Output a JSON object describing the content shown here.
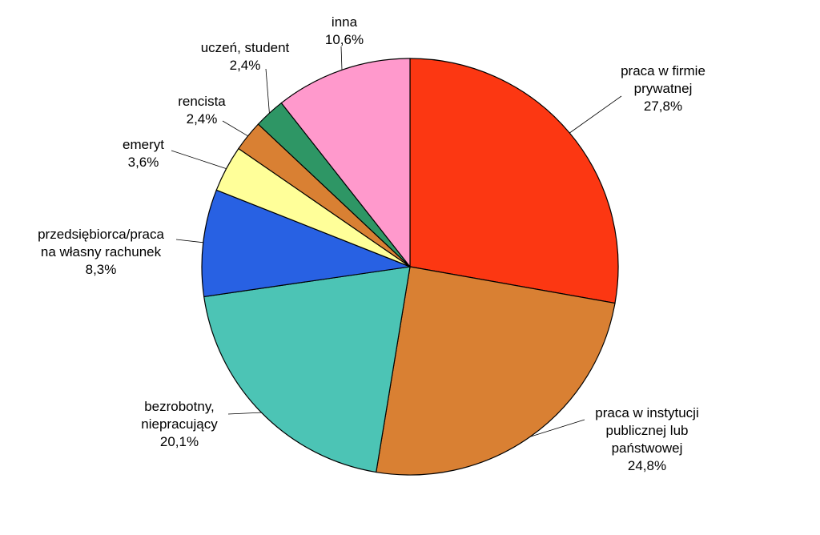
{
  "chart_data": {
    "type": "pie",
    "title": "",
    "start": "top",
    "direction": "clockwise",
    "slices": [
      {
        "label_lines": [
          "praca w firmie",
          "prywatnej"
        ],
        "value": 27.8,
        "value_label": "27,8%",
        "color": "#FC3712"
      },
      {
        "label_lines": [
          "praca w instytucji",
          "publicznej lub",
          "państwowej"
        ],
        "value": 24.8,
        "value_label": "24,8%",
        "color": "#D98033"
      },
      {
        "label_lines": [
          "bezrobotny,",
          "niepracujący"
        ],
        "value": 20.1,
        "value_label": "20,1%",
        "color": "#4CC4B5"
      },
      {
        "label_lines": [
          "przedsiębiorca/praca",
          "na własny rachunek"
        ],
        "value": 8.3,
        "value_label": "8,3%",
        "color": "#2861E3"
      },
      {
        "label_lines": [
          "emeryt"
        ],
        "value": 3.6,
        "value_label": "3,6%",
        "color": "#FFFF99"
      },
      {
        "label_lines": [
          "rencista"
        ],
        "value": 2.4,
        "value_label": "2,4%",
        "color": "#D98033"
      },
      {
        "label_lines": [
          "uczeń, student"
        ],
        "value": 2.4,
        "value_label": "2,4%",
        "color": "#2E9665"
      },
      {
        "label_lines": [
          "inna"
        ],
        "value": 10.6,
        "value_label": "10,6%",
        "color": "#FF99CC"
      }
    ]
  }
}
